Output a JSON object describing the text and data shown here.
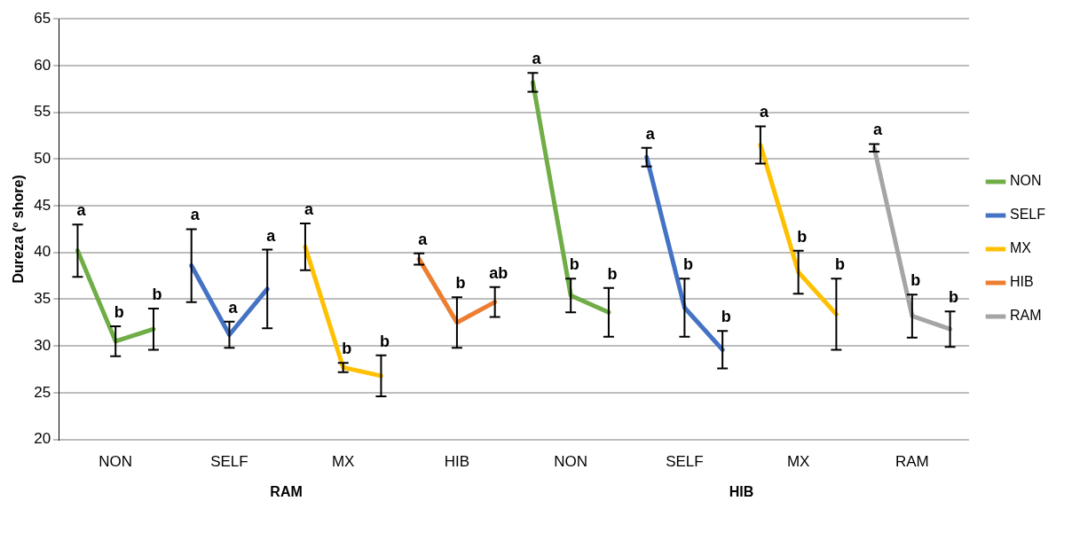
{
  "chart_data": {
    "type": "line",
    "ylabel": "Dureza (º shore)",
    "categories": [
      null,
      "NON",
      null,
      null,
      "SELF",
      null,
      null,
      "MX",
      null,
      null,
      "HIB",
      null,
      null,
      "NON",
      null,
      null,
      "SELF",
      null,
      null,
      "MX",
      null,
      null,
      "RAM",
      null
    ],
    "series": [
      {
        "name": "NON",
        "color": "#70ad47",
        "values": [
          40.2,
          30.5,
          31.8,
          null,
          null,
          null,
          null,
          null,
          null,
          null,
          null,
          null,
          58.2,
          35.4,
          33.6,
          null,
          null,
          null,
          null,
          null,
          null,
          null,
          null,
          null
        ],
        "errors": [
          2.8,
          1.6,
          2.2,
          null,
          null,
          null,
          null,
          null,
          null,
          null,
          null,
          null,
          1.0,
          1.8,
          2.6,
          null,
          null,
          null,
          null,
          null,
          null,
          null,
          null,
          null
        ],
        "value_labels": [
          "a",
          "b",
          "b",
          null,
          null,
          null,
          null,
          null,
          null,
          null,
          null,
          null,
          "a",
          "b",
          "b",
          null,
          null,
          null,
          null,
          null,
          null,
          null,
          null,
          null
        ]
      },
      {
        "name": "SELF",
        "color": "#4472c4",
        "values": [
          null,
          null,
          null,
          38.6,
          31.2,
          36.1,
          null,
          null,
          null,
          null,
          null,
          null,
          null,
          null,
          null,
          50.2,
          34.1,
          29.6,
          null,
          null,
          null,
          null,
          null,
          null
        ],
        "errors": [
          null,
          null,
          null,
          3.9,
          1.4,
          4.2,
          null,
          null,
          null,
          null,
          null,
          null,
          null,
          null,
          null,
          1.0,
          3.1,
          2.0,
          null,
          null,
          null,
          null,
          null,
          null
        ],
        "value_labels": [
          null,
          null,
          null,
          "a",
          "a",
          "a",
          null,
          null,
          null,
          null,
          null,
          null,
          null,
          null,
          null,
          "a",
          "b",
          "b",
          null,
          null,
          null,
          null,
          null,
          null
        ]
      },
      {
        "name": "MX",
        "color": "#ffc000",
        "values": [
          null,
          null,
          null,
          null,
          null,
          null,
          40.6,
          27.7,
          26.8,
          null,
          null,
          null,
          null,
          null,
          null,
          null,
          null,
          null,
          51.5,
          37.9,
          33.4,
          null,
          null,
          null
        ],
        "errors": [
          null,
          null,
          null,
          null,
          null,
          null,
          2.5,
          0.5,
          2.2,
          null,
          null,
          null,
          null,
          null,
          null,
          null,
          null,
          null,
          2.0,
          2.3,
          3.8,
          null,
          null,
          null
        ],
        "value_labels": [
          null,
          null,
          null,
          null,
          null,
          null,
          "a",
          "b",
          "b",
          null,
          null,
          null,
          null,
          null,
          null,
          null,
          null,
          null,
          "a",
          "b",
          "b",
          null,
          null,
          null
        ]
      },
      {
        "name": "HIB",
        "color": "#ed7d31",
        "values": [
          null,
          null,
          null,
          null,
          null,
          null,
          null,
          null,
          null,
          39.3,
          32.5,
          34.7,
          null,
          null,
          null,
          null,
          null,
          null,
          null,
          null,
          null,
          null,
          null,
          null
        ],
        "errors": [
          null,
          null,
          null,
          null,
          null,
          null,
          null,
          null,
          null,
          0.6,
          2.7,
          1.6,
          null,
          null,
          null,
          null,
          null,
          null,
          null,
          null,
          null,
          null,
          null,
          null
        ],
        "value_labels": [
          null,
          null,
          null,
          null,
          null,
          null,
          null,
          null,
          null,
          "a",
          "b",
          "ab",
          null,
          null,
          null,
          null,
          null,
          null,
          null,
          null,
          null,
          null,
          null,
          null
        ]
      },
      {
        "name": "RAM",
        "color": "#a5a5a5",
        "values": [
          null,
          null,
          null,
          null,
          null,
          null,
          null,
          null,
          null,
          null,
          null,
          null,
          null,
          null,
          null,
          null,
          null,
          null,
          null,
          null,
          null,
          51.2,
          33.2,
          31.8
        ],
        "errors": [
          null,
          null,
          null,
          null,
          null,
          null,
          null,
          null,
          null,
          null,
          null,
          null,
          null,
          null,
          null,
          null,
          null,
          null,
          null,
          null,
          null,
          0.4,
          2.3,
          1.9
        ],
        "value_labels": [
          null,
          null,
          null,
          null,
          null,
          null,
          null,
          null,
          null,
          null,
          null,
          null,
          null,
          null,
          null,
          null,
          null,
          null,
          null,
          null,
          null,
          "a",
          "b",
          "b"
        ]
      }
    ],
    "ylim": [
      20,
      65
    ],
    "yticks": [
      20,
      25,
      30,
      35,
      40,
      45,
      50,
      55,
      60,
      65
    ],
    "grid": "y",
    "legend": "right",
    "marker": "none",
    "line_style": "solid",
    "annotations": [
      "RAM",
      "HIB"
    ]
  }
}
